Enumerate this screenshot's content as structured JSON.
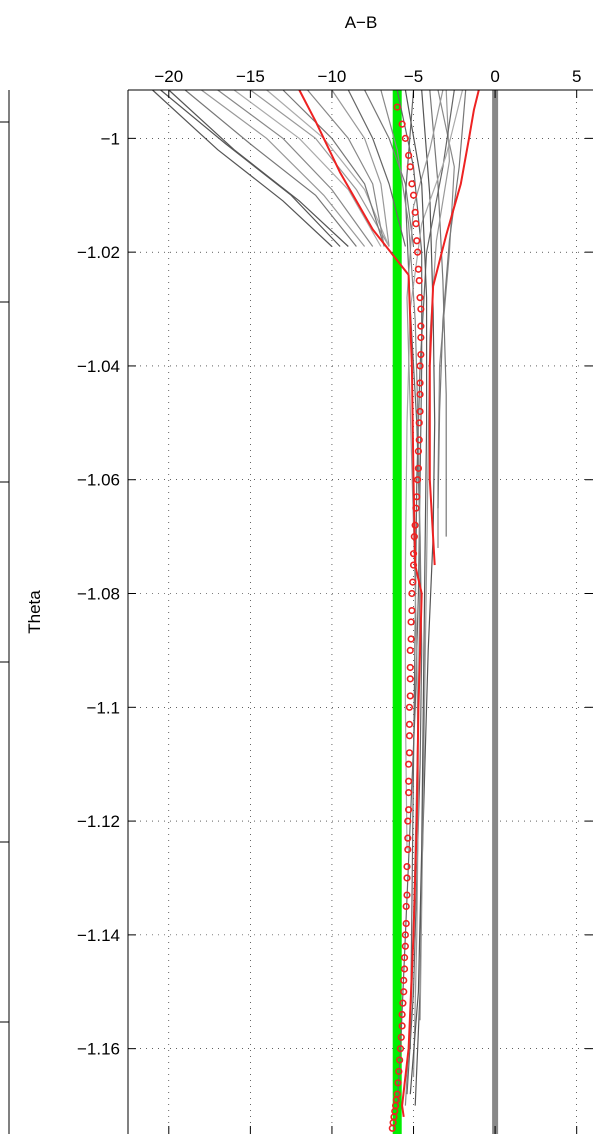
{
  "chart_data": {
    "type": "line",
    "title": "A−B",
    "xlabel": "A−B",
    "ylabel": "Theta",
    "xlim": [
      -22.5,
      6
    ],
    "ylim": [
      -1.175,
      -0.9915
    ],
    "x_ticks": [
      -20,
      -15,
      -10,
      -5,
      0,
      5
    ],
    "x_tick_labels": [
      "−20",
      "−15",
      "−10",
      "−5",
      "0",
      "5"
    ],
    "y_ticks": [
      -1,
      -1.02,
      -1.04,
      -1.06,
      -1.08,
      -1.1,
      -1.12,
      -1.14,
      -1.16
    ],
    "y_tick_labels": [
      "−1",
      "−1.02",
      "−1.04",
      "−1.06",
      "−1.08",
      "−1.1",
      "−1.12",
      "−1.14",
      "−1.16"
    ],
    "grid": true,
    "axis_position": "top",
    "reference_lines": [
      {
        "x": -6.0,
        "color": "#00ee00"
      },
      {
        "x": 0.0,
        "color": "#888888"
      }
    ],
    "colors": {
      "gray_tracks": "#666666",
      "light_gray_tracks": "#aaaaaa",
      "red": "#ee2222",
      "green": "#00ee00",
      "zero_line": "#888888"
    },
    "series": [
      {
        "color": "#555555",
        "points": [
          [
            -21,
            -0.9915
          ],
          [
            -17,
            -1.002
          ],
          [
            -13,
            -1.011
          ],
          [
            -10,
            -1.019
          ]
        ]
      },
      {
        "color": "#555555",
        "points": [
          [
            -20.5,
            -0.9915
          ],
          [
            -16.5,
            -1.001
          ],
          [
            -12.5,
            -1.01
          ],
          [
            -9.5,
            -1.019
          ]
        ]
      },
      {
        "color": "#555555",
        "points": [
          [
            -20,
            -0.9915
          ],
          [
            -16,
            -1.002
          ],
          [
            -12,
            -1.011
          ],
          [
            -9,
            -1.019
          ]
        ]
      },
      {
        "color": "#777777",
        "points": [
          [
            -19,
            -0.9915
          ],
          [
            -15,
            -1.001
          ],
          [
            -11,
            -1.01
          ],
          [
            -8.5,
            -1.019
          ]
        ]
      },
      {
        "color": "#999999",
        "points": [
          [
            -18,
            -0.9915
          ],
          [
            -14,
            -1.0
          ],
          [
            -10.5,
            -1.01
          ],
          [
            -8,
            -1.019
          ]
        ]
      },
      {
        "color": "#888888",
        "points": [
          [
            -17,
            -0.9915
          ],
          [
            -13,
            -1.0
          ],
          [
            -10,
            -1.009
          ],
          [
            -7.5,
            -1.019
          ]
        ]
      },
      {
        "color": "#aaaaaa",
        "points": [
          [
            -16,
            -0.9915
          ],
          [
            -12,
            -1.0
          ],
          [
            -9,
            -1.009
          ],
          [
            -7,
            -1.019
          ]
        ]
      },
      {
        "color": "#999999",
        "points": [
          [
            -15,
            -0.9915
          ],
          [
            -11,
            -1.0
          ],
          [
            -8.5,
            -1.009
          ],
          [
            -6.5,
            -1.019
          ]
        ]
      },
      {
        "color": "#aaaaaa",
        "points": [
          [
            -14,
            -0.9915
          ],
          [
            -10.5,
            -1.0
          ],
          [
            -8,
            -1.009
          ],
          [
            -6.5,
            -1.019
          ]
        ]
      },
      {
        "color": "#777777",
        "points": [
          [
            -13,
            -0.9915
          ],
          [
            -10,
            -1.0
          ],
          [
            -8,
            -1.008
          ],
          [
            -6.8,
            -1.019
          ]
        ]
      },
      {
        "color": "#888888",
        "points": [
          [
            -11.5,
            -0.9915
          ],
          [
            -9,
            -1.0
          ],
          [
            -7.5,
            -1.008
          ],
          [
            -6.8,
            -1.019
          ]
        ]
      },
      {
        "color": "#999999",
        "points": [
          [
            -10,
            -0.9915
          ],
          [
            -8,
            -1.0
          ],
          [
            -7,
            -1.008
          ],
          [
            -6.5,
            -1.019
          ]
        ]
      },
      {
        "color": "#666666",
        "points": [
          [
            -9,
            -0.9915
          ],
          [
            -7.5,
            -1.0
          ],
          [
            -6.5,
            -1.008
          ],
          [
            -5.5,
            -1.019
          ]
        ]
      },
      {
        "color": "#777777",
        "points": [
          [
            -8,
            -0.9915
          ],
          [
            -6.5,
            -1.0
          ],
          [
            -5.5,
            -1.008
          ],
          [
            -5,
            -1.019
          ]
        ]
      },
      {
        "color": "#666666",
        "points": [
          [
            -6,
            -0.9915
          ],
          [
            -5,
            -1.005
          ],
          [
            -4.5,
            -1.02
          ],
          [
            -4.5,
            -1.04
          ],
          [
            -4.6,
            -1.06
          ],
          [
            -4.7,
            -1.08
          ],
          [
            -4.9,
            -1.1
          ],
          [
            -5.2,
            -1.12
          ],
          [
            -5.5,
            -1.14
          ],
          [
            -5.8,
            -1.16
          ],
          [
            -6,
            -1.17
          ]
        ]
      },
      {
        "color": "#666666",
        "points": [
          [
            -5,
            -0.9915
          ],
          [
            -5.5,
            -1.01
          ],
          [
            -5.2,
            -1.03
          ],
          [
            -4.8,
            -1.05
          ],
          [
            -4.6,
            -1.07
          ],
          [
            -4.5,
            -1.09
          ],
          [
            -4.6,
            -1.11
          ],
          [
            -4.8,
            -1.13
          ],
          [
            -5.0,
            -1.15
          ],
          [
            -5.4,
            -1.168
          ]
        ]
      },
      {
        "color": "#555555",
        "points": [
          [
            -4.5,
            -0.9915
          ],
          [
            -4.0,
            -1.01
          ],
          [
            -3.8,
            -1.03
          ],
          [
            -3.7,
            -1.05
          ],
          [
            -3.8,
            -1.07
          ],
          [
            -4.1,
            -1.09
          ],
          [
            -4.3,
            -1.11
          ],
          [
            -4.5,
            -1.13
          ],
          [
            -4.6,
            -1.15
          ],
          [
            -4.9,
            -1.17
          ]
        ]
      },
      {
        "color": "#777777",
        "points": [
          [
            -4,
            -0.9915
          ],
          [
            -3.5,
            -1.008
          ],
          [
            -3.2,
            -1.025
          ],
          [
            -3.0,
            -1.045
          ],
          [
            -3.0,
            -1.07
          ]
        ]
      },
      {
        "color": "#888888",
        "points": [
          [
            -3.5,
            -0.9915
          ],
          [
            -2.5,
            -1.005
          ],
          [
            -2.8,
            -1.02
          ],
          [
            -3.4,
            -1.04
          ],
          [
            -3.5,
            -1.06
          ],
          [
            -3.5,
            -1.072
          ]
        ]
      },
      {
        "color": "#999999",
        "points": [
          [
            -3,
            -0.9915
          ],
          [
            -2.8,
            -1.004
          ],
          [
            -3.6,
            -1.018
          ],
          [
            -4.0,
            -1.035
          ],
          [
            -4.1,
            -1.055
          ],
          [
            -4.2,
            -1.075
          ],
          [
            -4.3,
            -1.095
          ],
          [
            -4.4,
            -1.115
          ],
          [
            -4.5,
            -1.135
          ],
          [
            -4.6,
            -1.155
          ]
        ]
      },
      {
        "color": "#666666",
        "points": [
          [
            -2.5,
            -0.9915
          ],
          [
            -3.2,
            -1.005
          ],
          [
            -4.2,
            -1.02
          ],
          [
            -4.6,
            -1.04
          ],
          [
            -4.8,
            -1.06
          ],
          [
            -4.9,
            -1.085
          ],
          [
            -5.0,
            -1.11
          ],
          [
            -5.1,
            -1.135
          ],
          [
            -5.2,
            -1.16
          ]
        ]
      },
      {
        "color": "#aaaaaa",
        "points": [
          [
            -2,
            -0.9915
          ],
          [
            -3.0,
            -1.003
          ],
          [
            -4.5,
            -1.015
          ],
          [
            -5.2,
            -1.03
          ],
          [
            -5.4,
            -1.05
          ],
          [
            -5.5,
            -1.075
          ],
          [
            -5.5,
            -1.1
          ],
          [
            -5.4,
            -1.125
          ]
        ]
      },
      {
        "color": "#777777",
        "points": [
          [
            -1.8,
            -0.9915
          ],
          [
            -2.2,
            -1.005
          ],
          [
            -2.8,
            -1.018
          ],
          [
            -3.2,
            -1.032
          ],
          [
            -3.4,
            -1.048
          ],
          [
            -3.5,
            -1.065
          ]
        ]
      },
      {
        "color": "#999999",
        "points": [
          [
            -3.2,
            -0.9915
          ],
          [
            -4.0,
            -1.002
          ],
          [
            -5.0,
            -1.012
          ],
          [
            -5.4,
            -1.028
          ],
          [
            -5.2,
            -1.048
          ],
          [
            -5.0,
            -1.068
          ],
          [
            -4.8,
            -1.09
          ],
          [
            -4.7,
            -1.115
          ],
          [
            -4.8,
            -1.14
          ],
          [
            -5.0,
            -1.165
          ]
        ]
      },
      {
        "color": "#555555",
        "points": [
          [
            -5.5,
            -0.9915
          ],
          [
            -4.5,
            -1.008
          ],
          [
            -4.2,
            -1.028
          ],
          [
            -4.2,
            -1.05
          ],
          [
            -4.3,
            -1.075
          ],
          [
            -4.4,
            -1.1
          ],
          [
            -4.5,
            -1.125
          ],
          [
            -4.7,
            -1.15
          ],
          [
            -5.2,
            -1.168
          ]
        ]
      },
      {
        "color": "#888888",
        "points": [
          [
            -7,
            -0.9915
          ],
          [
            -6.0,
            -1.002
          ],
          [
            -5.3,
            -1.015
          ],
          [
            -4.9,
            -1.032
          ],
          [
            -4.7,
            -1.052
          ],
          [
            -4.6,
            -1.075
          ],
          [
            -4.7,
            -1.1
          ],
          [
            -4.9,
            -1.125
          ],
          [
            -5.1,
            -1.15
          ],
          [
            -5.5,
            -1.17
          ]
        ]
      },
      {
        "color": "#ee2222",
        "points": [
          [
            -12,
            -0.9915
          ],
          [
            -11,
            -0.997
          ],
          [
            -9.5,
            -1.006
          ],
          [
            -7.5,
            -1.016
          ],
          [
            -5.3,
            -1.024
          ]
        ]
      },
      {
        "color": "#ee2222",
        "points": [
          [
            -1,
            -0.9915
          ],
          [
            -1.3,
            -0.995
          ],
          [
            -1.6,
            -1.0
          ],
          [
            -2.1,
            -1.008
          ],
          [
            -3.0,
            -1.017
          ],
          [
            -3.8,
            -1.026
          ],
          [
            -4.0,
            -1.04
          ],
          [
            -4.0,
            -1.06
          ],
          [
            -3.7,
            -1.075
          ]
        ]
      },
      {
        "color": "#ee2222",
        "points": [
          [
            -5.3,
            -1.024
          ],
          [
            -5.1,
            -1.04
          ],
          [
            -5.0,
            -1.06
          ],
          [
            -4.9,
            -1.075
          ],
          [
            -4.5,
            -1.08
          ],
          [
            -4.6,
            -1.09
          ],
          [
            -4.7,
            -1.1
          ],
          [
            -4.8,
            -1.12
          ],
          [
            -5.0,
            -1.14
          ],
          [
            -5.3,
            -1.16
          ],
          [
            -5.7,
            -1.17
          ],
          [
            -5.6,
            -1.172
          ]
        ]
      }
    ],
    "marker_series": {
      "color": "#ee2222",
      "marker": "circle",
      "points": [
        [
          -6.0,
          -0.9945
        ],
        [
          -5.7,
          -0.9975
        ],
        [
          -5.5,
          -1.0
        ],
        [
          -5.3,
          -1.003
        ],
        [
          -5.2,
          -1.005
        ],
        [
          -5.1,
          -1.008
        ],
        [
          -5.0,
          -1.01
        ],
        [
          -4.9,
          -1.013
        ],
        [
          -4.85,
          -1.015
        ],
        [
          -4.8,
          -1.018
        ],
        [
          -4.75,
          -1.02
        ],
        [
          -4.7,
          -1.023
        ],
        [
          -4.65,
          -1.025
        ],
        [
          -4.6,
          -1.028
        ],
        [
          -4.55,
          -1.03
        ],
        [
          -4.55,
          -1.033
        ],
        [
          -4.55,
          -1.035
        ],
        [
          -4.55,
          -1.038
        ],
        [
          -4.6,
          -1.04
        ],
        [
          -4.6,
          -1.043
        ],
        [
          -4.6,
          -1.045
        ],
        [
          -4.6,
          -1.048
        ],
        [
          -4.65,
          -1.05
        ],
        [
          -4.65,
          -1.053
        ],
        [
          -4.7,
          -1.055
        ],
        [
          -4.7,
          -1.058
        ],
        [
          -4.75,
          -1.06
        ],
        [
          -4.8,
          -1.063
        ],
        [
          -4.85,
          -1.065
        ],
        [
          -4.9,
          -1.068
        ],
        [
          -4.95,
          -1.07
        ],
        [
          -5.0,
          -1.073
        ],
        [
          -5.0,
          -1.075
        ],
        [
          -5.05,
          -1.078
        ],
        [
          -5.1,
          -1.08
        ],
        [
          -5.1,
          -1.083
        ],
        [
          -5.15,
          -1.085
        ],
        [
          -5.15,
          -1.088
        ],
        [
          -5.2,
          -1.09
        ],
        [
          -5.2,
          -1.093
        ],
        [
          -5.2,
          -1.095
        ],
        [
          -5.2,
          -1.098
        ],
        [
          -5.25,
          -1.1
        ],
        [
          -5.25,
          -1.103
        ],
        [
          -5.25,
          -1.105
        ],
        [
          -5.25,
          -1.108
        ],
        [
          -5.3,
          -1.11
        ],
        [
          -5.3,
          -1.113
        ],
        [
          -5.3,
          -1.115
        ],
        [
          -5.3,
          -1.118
        ],
        [
          -5.35,
          -1.12
        ],
        [
          -5.35,
          -1.123
        ],
        [
          -5.35,
          -1.125
        ],
        [
          -5.4,
          -1.128
        ],
        [
          -5.4,
          -1.13
        ],
        [
          -5.4,
          -1.133
        ],
        [
          -5.45,
          -1.135
        ],
        [
          -5.45,
          -1.138
        ],
        [
          -5.5,
          -1.14
        ],
        [
          -5.5,
          -1.142
        ],
        [
          -5.55,
          -1.144
        ],
        [
          -5.55,
          -1.146
        ],
        [
          -5.6,
          -1.148
        ],
        [
          -5.6,
          -1.15
        ],
        [
          -5.65,
          -1.152
        ],
        [
          -5.7,
          -1.154
        ],
        [
          -5.7,
          -1.156
        ],
        [
          -5.75,
          -1.158
        ],
        [
          -5.8,
          -1.16
        ],
        [
          -5.85,
          -1.162
        ],
        [
          -5.9,
          -1.164
        ],
        [
          -5.95,
          -1.166
        ],
        [
          -6.0,
          -1.168
        ],
        [
          -6.05,
          -1.169
        ],
        [
          -6.1,
          -1.17
        ],
        [
          -6.15,
          -1.171
        ],
        [
          -6.2,
          -1.172
        ],
        [
          -6.25,
          -1.173
        ],
        [
          -6.3,
          -1.174
        ]
      ]
    }
  }
}
